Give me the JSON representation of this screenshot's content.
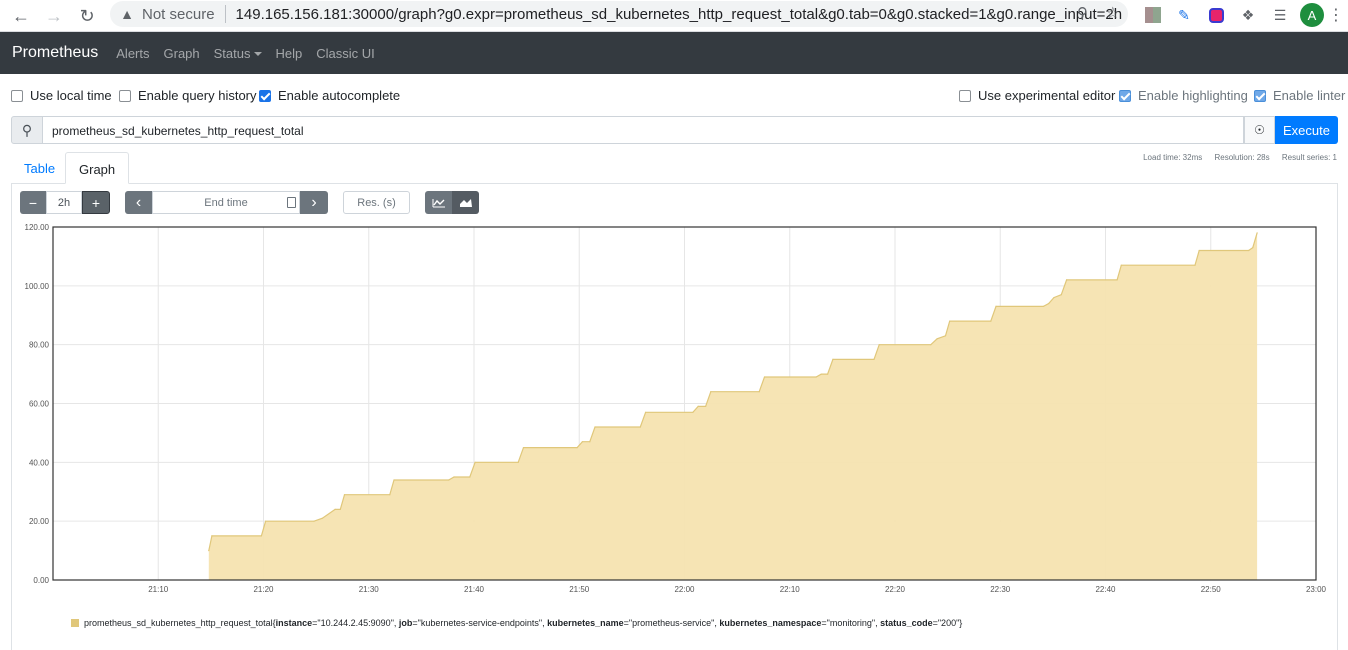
{
  "browser": {
    "not_secure": "Not secure",
    "url": "149.165.156.181:30000/graph?g0.expr=prometheus_sd_kubernetes_http_request_total&g0.tab=0&g0.stacked=1&g0.range_input=2h",
    "avatar_letter": "A"
  },
  "navbar": {
    "brand": "Prometheus",
    "links": [
      "Alerts",
      "Graph",
      "Status",
      "Help",
      "Classic UI"
    ]
  },
  "options": {
    "local_time": "Use local time",
    "query_history": "Enable query history",
    "autocomplete": "Enable autocomplete",
    "experimental_editor": "Use experimental editor",
    "highlighting": "Enable highlighting",
    "linter": "Enable linter"
  },
  "query": {
    "expr": "prometheus_sd_kubernetes_http_request_total",
    "execute": "Execute"
  },
  "tabs": {
    "table": "Table",
    "graph": "Graph"
  },
  "stats": {
    "load_time": "Load time: 32ms",
    "resolution": "Resolution: 28s",
    "result_series": "Result series: 1"
  },
  "controls": {
    "minus": "−",
    "range": "2h",
    "plus": "+",
    "end_time_placeholder": "End time",
    "resolution_placeholder": "Res. (s)"
  },
  "legend": {
    "metric": "prometheus_sd_kubernetes_http_request_total",
    "labels": [
      {
        "key": "instance",
        "value": "\"10.244.2.45:9090\""
      },
      {
        "key": "job",
        "value": "\"kubernetes-service-endpoints\""
      },
      {
        "key": "kubernetes_name",
        "value": "\"prometheus-service\""
      },
      {
        "key": "kubernetes_namespace",
        "value": "\"monitoring\""
      },
      {
        "key": "status_code",
        "value": "\"200\""
      }
    ]
  },
  "chart_data": {
    "type": "area",
    "stacked": true,
    "ylim": [
      0,
      120
    ],
    "yticks": [
      "0.00",
      "20.00",
      "40.00",
      "60.00",
      "80.00",
      "100.00",
      "120.00"
    ],
    "xticks": [
      "21:10",
      "21:20",
      "21:30",
      "21:40",
      "21:50",
      "22:00",
      "22:10",
      "22:20",
      "22:30",
      "22:40",
      "22:50",
      "23:00"
    ],
    "x_range_minutes": [
      0,
      120
    ],
    "series": [
      {
        "color": "#e0c77a",
        "points": [
          [
            14.8,
            10
          ],
          [
            15.1,
            15
          ],
          [
            19.8,
            15
          ],
          [
            20.2,
            20
          ],
          [
            24.8,
            20
          ],
          [
            25.6,
            21
          ],
          [
            26.8,
            24
          ],
          [
            27.3,
            24
          ],
          [
            27.7,
            29
          ],
          [
            32.0,
            29
          ],
          [
            32.4,
            34
          ],
          [
            37.6,
            34
          ],
          [
            38.1,
            35
          ],
          [
            39.6,
            35
          ],
          [
            40.1,
            40
          ],
          [
            44.2,
            40
          ],
          [
            44.7,
            45
          ],
          [
            49.8,
            45
          ],
          [
            50.3,
            47
          ],
          [
            51.0,
            47
          ],
          [
            51.5,
            52
          ],
          [
            55.8,
            52
          ],
          [
            56.3,
            57
          ],
          [
            60.8,
            57
          ],
          [
            61.3,
            59
          ],
          [
            62.0,
            59
          ],
          [
            62.5,
            64
          ],
          [
            67.1,
            64
          ],
          [
            67.6,
            69
          ],
          [
            72.5,
            69
          ],
          [
            73.0,
            70
          ],
          [
            73.6,
            70
          ],
          [
            74.1,
            75
          ],
          [
            78.0,
            75
          ],
          [
            78.5,
            80
          ],
          [
            83.4,
            80
          ],
          [
            84.0,
            82
          ],
          [
            84.8,
            83
          ],
          [
            85.2,
            88
          ],
          [
            89.1,
            88
          ],
          [
            89.6,
            93
          ],
          [
            94.1,
            93
          ],
          [
            94.6,
            94
          ],
          [
            95.1,
            96
          ],
          [
            95.8,
            97
          ],
          [
            96.3,
            102
          ],
          [
            101.1,
            102
          ],
          [
            101.5,
            107
          ],
          [
            108.5,
            107
          ],
          [
            108.9,
            112
          ],
          [
            113.6,
            112
          ],
          [
            114.0,
            113
          ],
          [
            114.4,
            118
          ]
        ]
      }
    ]
  }
}
